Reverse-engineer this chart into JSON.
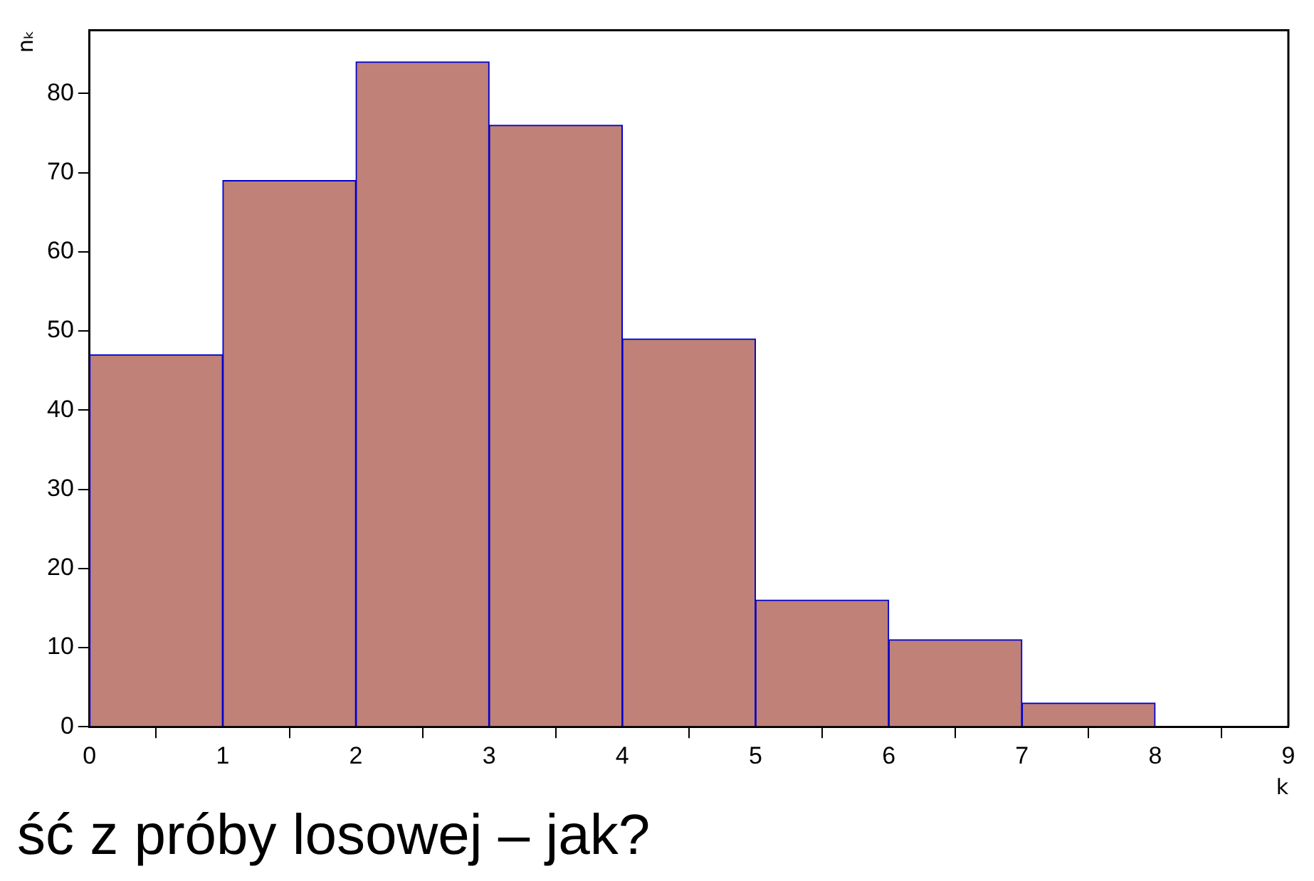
{
  "chart_data": {
    "type": "histogram",
    "xlabel": "k",
    "ylabel": "nₖ",
    "bins": [
      0,
      1,
      2,
      3,
      4,
      5,
      6,
      7,
      8,
      9
    ],
    "values": [
      47,
      69,
      84,
      76,
      49,
      16,
      11,
      3,
      0
    ],
    "color": "#bf8178",
    "xlim": [
      0,
      9
    ],
    "xticks": [
      0,
      1,
      2,
      3,
      4,
      5,
      6,
      7,
      8,
      9
    ],
    "ylim": [
      0,
      88
    ],
    "yticks": [
      0,
      10,
      20,
      30,
      40,
      50,
      60,
      70,
      80
    ],
    "grid": false,
    "legend": false,
    "annotations": [
      "ść z próby losowej – jak?"
    ]
  }
}
